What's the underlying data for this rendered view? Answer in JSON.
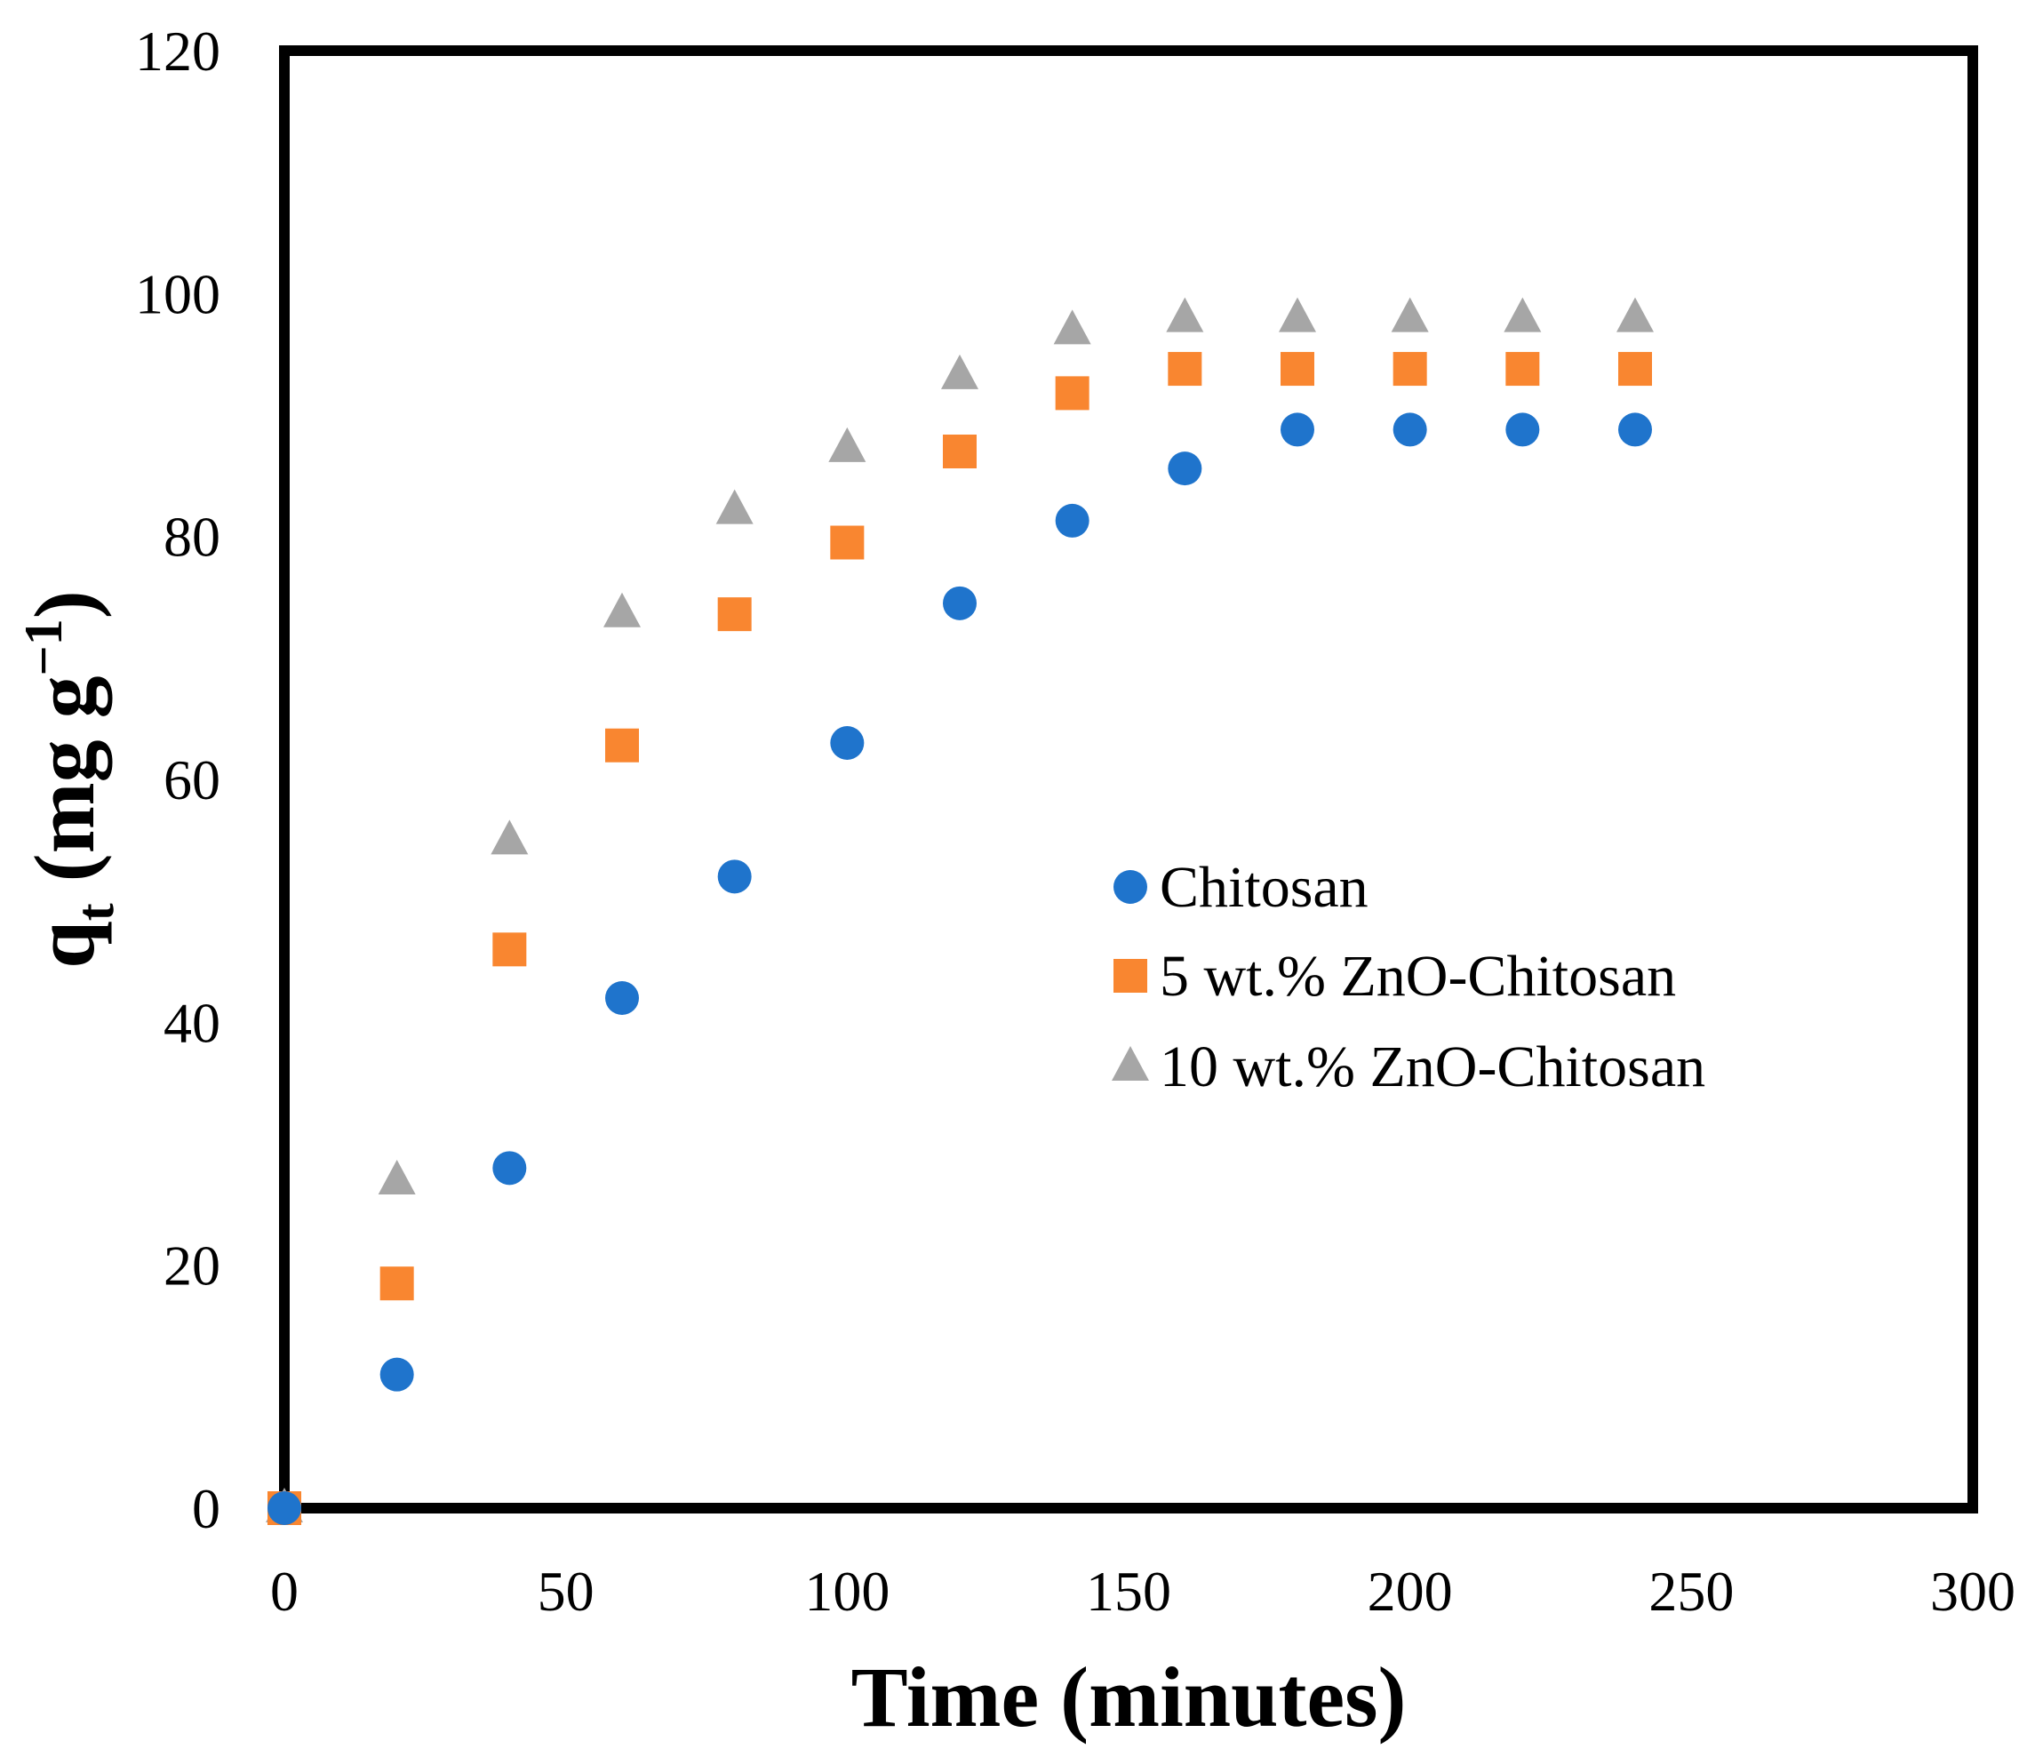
{
  "chart_data": {
    "type": "scatter",
    "title": "",
    "xlabel": "Time (minutes)",
    "ylabel": {
      "base": "q",
      "sub": "t",
      "unit_prefix": " (mg g",
      "unit_sup": "−1",
      "unit_suffix": ")"
    },
    "xlim": [
      0,
      300
    ],
    "ylim": [
      0,
      120
    ],
    "xticks": [
      0,
      50,
      100,
      150,
      200,
      250,
      300
    ],
    "yticks": [
      0,
      20,
      40,
      60,
      80,
      100,
      120
    ],
    "grid": false,
    "legend_position": "center-right",
    "x": [
      0,
      20,
      40,
      60,
      80,
      100,
      120,
      140,
      160,
      180,
      200,
      220,
      240
    ],
    "series": [
      {
        "name": "Chitosan",
        "marker": "circle",
        "color": "#1F74CC",
        "values": [
          0,
          11,
          28,
          42,
          52,
          63,
          74.5,
          81.3,
          85.6,
          88.8,
          88.8,
          88.8,
          88.8
        ]
      },
      {
        "name": "5 wt.% ZnO-Chitosan",
        "marker": "square",
        "color": "#F98630",
        "values": [
          0,
          18.5,
          46,
          62.8,
          73.6,
          79.5,
          87,
          91.8,
          93.8,
          93.8,
          93.8,
          93.8,
          93.8
        ]
      },
      {
        "name": "10 wt.% ZnO-Chitosan",
        "marker": "triangle",
        "color": "#A6A6A6",
        "values": [
          0,
          27,
          55,
          73.7,
          82.2,
          87.3,
          93.3,
          97,
          98,
          98,
          98,
          98,
          98
        ]
      }
    ]
  }
}
